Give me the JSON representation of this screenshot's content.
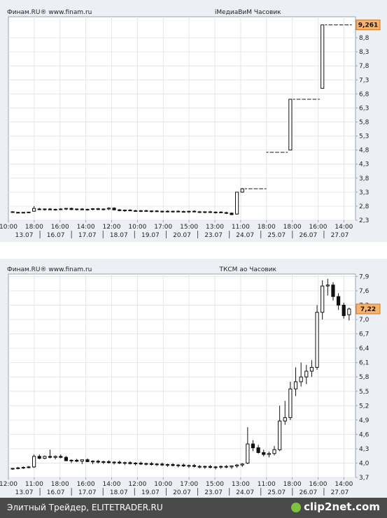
{
  "chart_data": [
    {
      "type": "candlestick",
      "source_label": "Финам.RU®  www.finam.ru",
      "title": "iМедиаВиМ Часовик",
      "ylim": [
        2.3,
        9.55
      ],
      "y_ticks": [
        "2,3",
        "2,8",
        "3,3",
        "3,8",
        "4,3",
        "4,8",
        "5,3",
        "5,8",
        "6,3",
        "6,8",
        "7,3",
        "7,8",
        "8,3",
        "8,8"
      ],
      "last_price": "9,261",
      "x_time_labels": [
        "10:00",
        "18:00",
        "16:00",
        "14:00",
        "12:00",
        "10:00",
        "17:00",
        "15:00",
        "13:00",
        "11:00",
        "18:00",
        "18:00",
        "16:00",
        "14:00"
      ],
      "x_date_labels": [
        "13.07",
        "16.07",
        "17.07",
        "18.07",
        "19.07",
        "20.07",
        "23.07",
        "24.07",
        "25.07",
        "26.07",
        "27.07"
      ],
      "grid": true,
      "candles": [
        [
          2.6,
          2.62,
          2.56,
          2.58
        ],
        [
          2.58,
          2.6,
          2.55,
          2.57
        ],
        [
          2.57,
          2.59,
          2.55,
          2.58
        ],
        [
          2.58,
          2.6,
          2.56,
          2.59
        ],
        [
          2.62,
          2.8,
          2.6,
          2.72
        ],
        [
          2.7,
          2.74,
          2.66,
          2.68
        ],
        [
          2.68,
          2.72,
          2.64,
          2.7
        ],
        [
          2.7,
          2.73,
          2.66,
          2.67
        ],
        [
          2.67,
          2.71,
          2.64,
          2.69
        ],
        [
          2.69,
          2.73,
          2.66,
          2.7
        ],
        [
          2.7,
          2.74,
          2.66,
          2.72
        ],
        [
          2.72,
          2.75,
          2.66,
          2.68
        ],
        [
          2.68,
          2.72,
          2.65,
          2.7
        ],
        [
          2.7,
          2.73,
          2.66,
          2.67
        ],
        [
          2.67,
          2.71,
          2.64,
          2.69
        ],
        [
          2.69,
          2.73,
          2.65,
          2.71
        ],
        [
          2.71,
          2.74,
          2.66,
          2.68
        ],
        [
          2.68,
          2.72,
          2.65,
          2.7
        ],
        [
          2.7,
          2.76,
          2.66,
          2.73
        ],
        [
          2.73,
          2.76,
          2.65,
          2.67
        ],
        [
          2.67,
          2.7,
          2.62,
          2.64
        ],
        [
          2.64,
          2.68,
          2.6,
          2.66
        ],
        [
          2.66,
          2.69,
          2.62,
          2.64
        ],
        [
          2.64,
          2.67,
          2.6,
          2.62
        ],
        [
          2.62,
          2.66,
          2.59,
          2.64
        ],
        [
          2.64,
          2.67,
          2.6,
          2.62
        ],
        [
          2.62,
          2.65,
          2.58,
          2.63
        ],
        [
          2.63,
          2.66,
          2.59,
          2.61
        ],
        [
          2.61,
          2.64,
          2.57,
          2.62
        ],
        [
          2.62,
          2.65,
          2.58,
          2.6
        ],
        [
          2.6,
          2.64,
          2.57,
          2.62
        ],
        [
          2.62,
          2.65,
          2.58,
          2.61
        ],
        [
          2.61,
          2.64,
          2.57,
          2.6
        ],
        [
          2.6,
          2.63,
          2.56,
          2.62
        ],
        [
          2.62,
          2.65,
          2.58,
          2.6
        ],
        [
          2.6,
          2.63,
          2.56,
          2.59
        ],
        [
          2.59,
          2.62,
          2.55,
          2.6
        ],
        [
          2.6,
          2.63,
          2.56,
          2.58
        ],
        [
          2.58,
          2.61,
          2.54,
          2.59
        ],
        [
          2.59,
          2.62,
          2.55,
          2.57
        ],
        [
          2.57,
          2.6,
          2.52,
          2.55
        ],
        [
          2.55,
          2.58,
          2.48,
          2.5
        ],
        [
          2.52,
          3.3,
          2.5,
          3.3
        ],
        [
          3.3,
          3.45,
          3.28,
          3.42
        ],
        [
          3.42,
          3.42,
          3.42,
          3.42
        ],
        [
          3.42,
          3.42,
          3.42,
          3.42
        ],
        [
          3.42,
          3.42,
          3.42,
          3.42
        ],
        [
          3.42,
          3.42,
          3.42,
          3.42
        ],
        [
          4.72,
          4.72,
          4.72,
          4.72
        ],
        [
          4.72,
          4.72,
          4.72,
          4.72
        ],
        [
          4.72,
          4.72,
          4.72,
          4.72
        ],
        [
          4.72,
          4.72,
          4.72,
          4.72
        ],
        [
          4.8,
          6.61,
          4.8,
          6.61
        ],
        [
          6.61,
          6.61,
          6.61,
          6.61
        ],
        [
          6.61,
          6.61,
          6.61,
          6.61
        ],
        [
          6.61,
          6.61,
          6.61,
          6.61
        ],
        [
          6.61,
          6.61,
          6.61,
          6.61
        ],
        [
          6.61,
          6.61,
          6.61,
          6.61
        ],
        [
          7.0,
          9.26,
          7.0,
          9.26
        ],
        [
          9.26,
          9.26,
          9.26,
          9.26
        ],
        [
          9.26,
          9.26,
          9.26,
          9.26
        ],
        [
          9.26,
          9.26,
          9.26,
          9.26
        ],
        [
          9.26,
          9.26,
          9.26,
          9.26
        ],
        [
          9.26,
          9.26,
          9.26,
          9.26
        ]
      ]
    },
    {
      "type": "candlestick",
      "source_label": "Финам.RU®  www.finam.ru",
      "title": "ТКСМ ао Часовик",
      "ylim": [
        3.7,
        7.95
      ],
      "y_ticks": [
        "3,7",
        "4,0",
        "4,3",
        "4,6",
        "4,9",
        "5,2",
        "5,5",
        "5,8",
        "6,1",
        "6,4",
        "6,7",
        "7,0",
        "7,3",
        "7,6",
        "7,9"
      ],
      "last_price": "7,22",
      "x_time_labels": [
        "12:00",
        "11:00",
        "18:00",
        "16:00",
        "14:00",
        "12:00",
        "10:00",
        "17:00",
        "15:00",
        "13:00",
        "11:00",
        "18:00",
        "16:00",
        "14:00"
      ],
      "x_date_labels": [
        "13.07",
        "16.07",
        "17.07",
        "18.07",
        "19.07",
        "20.07",
        "23.07",
        "24.07",
        "25.07",
        "26.07",
        "27.07"
      ],
      "grid": true,
      "candles": [
        [
          3.88,
          3.9,
          3.86,
          3.89
        ],
        [
          3.89,
          3.92,
          3.87,
          3.9
        ],
        [
          3.9,
          3.93,
          3.88,
          3.91
        ],
        [
          3.91,
          3.94,
          3.89,
          3.92
        ],
        [
          3.92,
          4.18,
          3.9,
          4.14
        ],
        [
          4.14,
          4.18,
          4.08,
          4.1
        ],
        [
          4.1,
          4.16,
          4.08,
          4.14
        ],
        [
          4.14,
          4.28,
          4.1,
          4.12
        ],
        [
          4.12,
          4.16,
          4.08,
          4.14
        ],
        [
          4.14,
          4.18,
          4.1,
          4.12
        ],
        [
          4.12,
          4.15,
          4.04,
          4.05
        ],
        [
          4.05,
          4.08,
          4.0,
          4.06
        ],
        [
          4.06,
          4.09,
          4.02,
          4.04
        ],
        [
          4.04,
          4.06,
          3.98,
          4.07
        ],
        [
          4.07,
          4.1,
          4.02,
          4.03
        ],
        [
          4.03,
          4.06,
          3.98,
          4.04
        ],
        [
          4.04,
          4.07,
          3.99,
          4.02
        ],
        [
          4.02,
          4.05,
          3.98,
          4.03
        ],
        [
          4.03,
          4.06,
          3.99,
          4.01
        ],
        [
          4.01,
          4.04,
          3.97,
          4.02
        ],
        [
          4.02,
          4.05,
          3.98,
          4.0
        ],
        [
          4.0,
          4.03,
          3.96,
          4.01
        ],
        [
          4.01,
          4.04,
          3.97,
          3.99
        ],
        [
          3.99,
          4.02,
          3.95,
          4.0
        ],
        [
          4.0,
          4.03,
          3.96,
          3.98
        ],
        [
          3.98,
          4.01,
          3.95,
          3.99
        ],
        [
          3.99,
          4.02,
          3.95,
          3.97
        ],
        [
          3.97,
          4.0,
          3.94,
          3.98
        ],
        [
          3.98,
          4.01,
          3.94,
          3.96
        ],
        [
          3.96,
          3.99,
          3.92,
          3.97
        ],
        [
          3.97,
          4.0,
          3.93,
          3.95
        ],
        [
          3.95,
          3.98,
          3.91,
          3.96
        ],
        [
          3.96,
          3.99,
          3.92,
          3.94
        ],
        [
          3.94,
          3.97,
          3.9,
          3.95
        ],
        [
          3.95,
          3.98,
          3.91,
          3.93
        ],
        [
          3.93,
          3.96,
          3.89,
          3.92
        ],
        [
          3.92,
          3.95,
          3.88,
          3.93
        ],
        [
          3.93,
          3.96,
          3.89,
          3.91
        ],
        [
          3.91,
          3.94,
          3.87,
          3.92
        ],
        [
          3.92,
          3.95,
          3.88,
          3.93
        ],
        [
          3.93,
          3.96,
          3.89,
          3.92
        ],
        [
          3.92,
          3.95,
          3.88,
          3.94
        ],
        [
          3.94,
          3.98,
          3.9,
          3.96
        ],
        [
          3.96,
          4.0,
          3.92,
          3.98
        ],
        [
          4.0,
          4.75,
          3.98,
          4.4
        ],
        [
          4.4,
          4.48,
          4.25,
          4.32
        ],
        [
          4.32,
          4.38,
          4.2,
          4.22
        ],
        [
          4.22,
          4.28,
          4.14,
          4.18
        ],
        [
          4.18,
          4.24,
          4.12,
          4.2
        ],
        [
          4.2,
          4.36,
          4.16,
          4.28
        ],
        [
          4.28,
          5.2,
          4.25,
          4.88
        ],
        [
          4.88,
          5.3,
          4.8,
          4.95
        ],
        [
          4.95,
          5.7,
          4.9,
          5.55
        ],
        [
          5.55,
          6.0,
          5.4,
          5.7
        ],
        [
          5.7,
          6.1,
          5.6,
          5.8
        ],
        [
          5.8,
          6.05,
          5.65,
          5.92
        ],
        [
          5.92,
          6.15,
          5.8,
          6.0
        ],
        [
          6.0,
          7.3,
          5.95,
          7.15
        ],
        [
          7.15,
          7.82,
          7.0,
          7.7
        ],
        [
          7.7,
          7.85,
          7.5,
          7.72
        ],
        [
          7.72,
          7.78,
          7.4,
          7.48
        ],
        [
          7.48,
          7.55,
          7.2,
          7.3
        ],
        [
          7.3,
          7.35,
          7.02,
          7.08
        ],
        [
          7.1,
          7.25,
          6.98,
          7.22
        ]
      ]
    }
  ],
  "footer": {
    "text": "Элитный Трейдер, ELITETRADER.RU",
    "logo": "clip2net.com"
  }
}
